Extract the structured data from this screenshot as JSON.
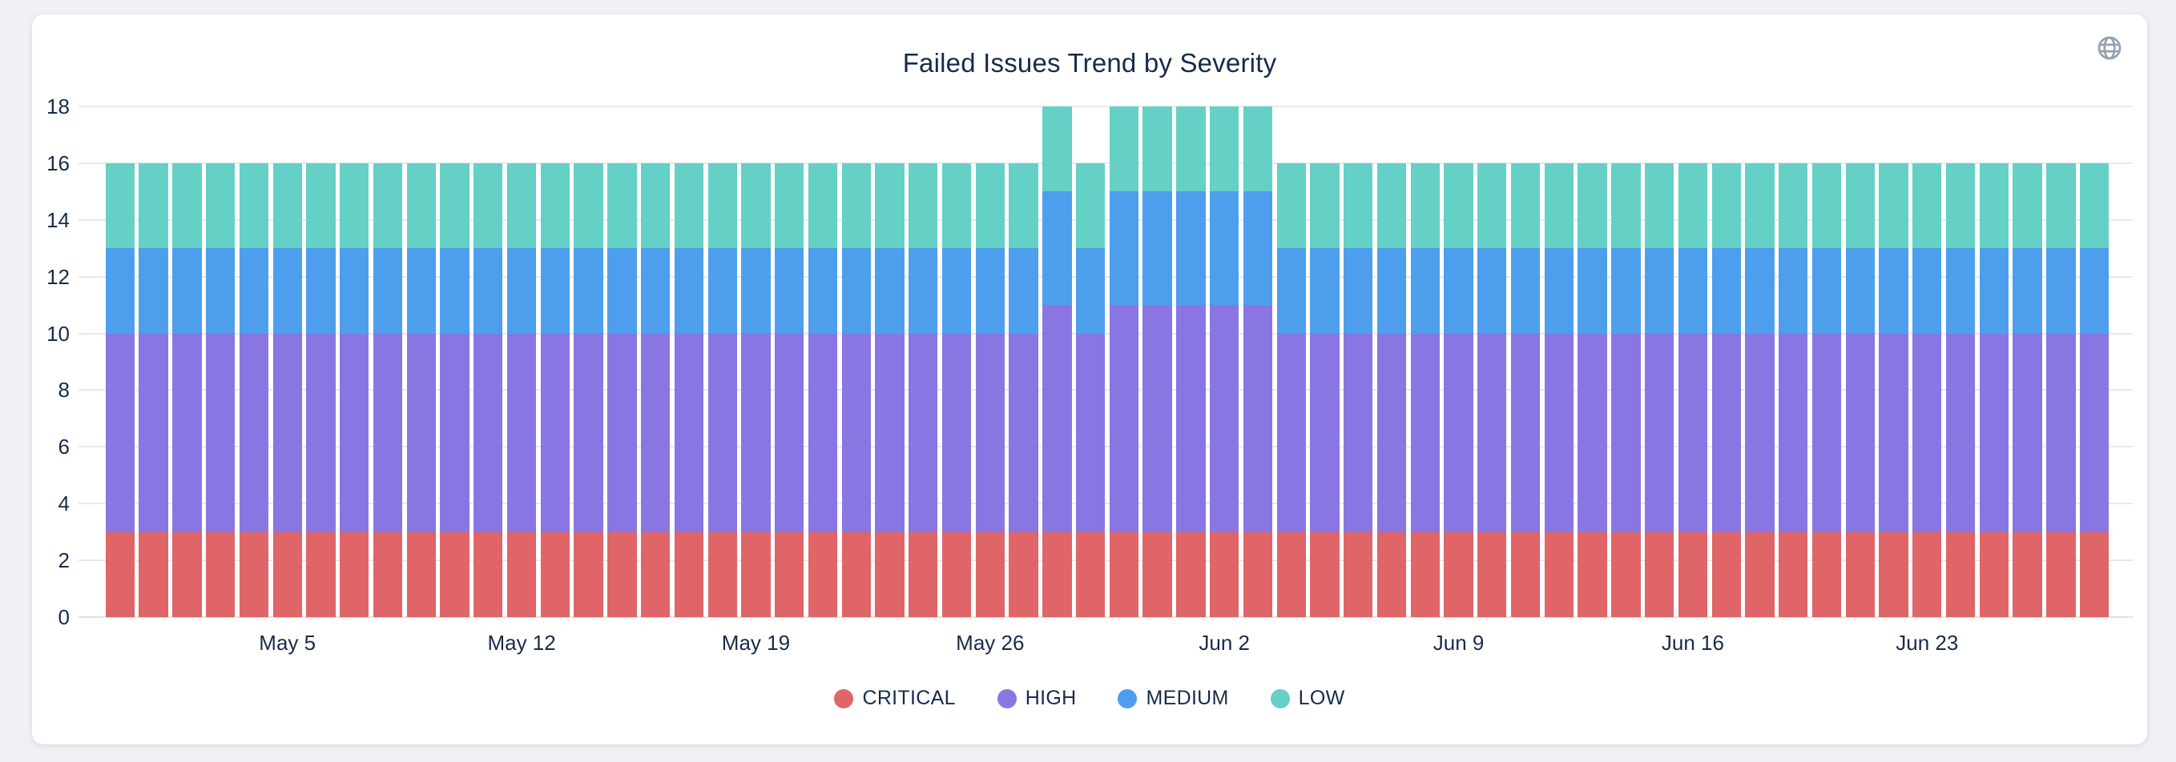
{
  "page": {
    "background": "#EFF1F4",
    "card_background": "#FFFFFF"
  },
  "chart": {
    "title": "Failed Issues Trend by Severity"
  },
  "header": {
    "icon": "globe",
    "icon_color": "#97A0AF"
  },
  "chart_data": {
    "type": "bar",
    "stacked": true,
    "title": "Failed Issues Trend by Severity",
    "grid": "horizontal",
    "legend_position": "bottom",
    "ylim": [
      0,
      18
    ],
    "y_ticks": [
      0,
      2,
      4,
      6,
      8,
      10,
      12,
      14,
      16,
      18
    ],
    "x_tick_indices": [
      5,
      12,
      19,
      26,
      33,
      40,
      47,
      54
    ],
    "x_tick_labels": [
      "May 5",
      "May 12",
      "May 19",
      "May 26",
      "Jun 2",
      "Jun 9",
      "Jun 16",
      "Jun 23"
    ],
    "categories": [
      "Apr 30",
      "May 1",
      "May 2",
      "May 3",
      "May 4",
      "May 5",
      "May 6",
      "May 7",
      "May 8",
      "May 9",
      "May 10",
      "May 11",
      "May 12",
      "May 13",
      "May 14",
      "May 15",
      "May 16",
      "May 17",
      "May 18",
      "May 19",
      "May 20",
      "May 21",
      "May 22",
      "May 23",
      "May 24",
      "May 25",
      "May 26",
      "May 27",
      "May 28",
      "May 29",
      "May 30",
      "May 31",
      "Jun 1",
      "Jun 2",
      "Jun 3",
      "Jun 4",
      "Jun 5",
      "Jun 6",
      "Jun 7",
      "Jun 8",
      "Jun 9",
      "Jun 10",
      "Jun 11",
      "Jun 12",
      "Jun 13",
      "Jun 14",
      "Jun 15",
      "Jun 16",
      "Jun 17",
      "Jun 18",
      "Jun 19",
      "Jun 20",
      "Jun 21",
      "Jun 22",
      "Jun 23",
      "Jun 24",
      "Jun 25",
      "Jun 26",
      "Jun 27",
      "Jun 28"
    ],
    "series": [
      {
        "name": "CRITICAL",
        "color": "#DF6568",
        "values": [
          3,
          3,
          3,
          3,
          3,
          3,
          3,
          3,
          3,
          3,
          3,
          3,
          3,
          3,
          3,
          3,
          3,
          3,
          3,
          3,
          3,
          3,
          3,
          3,
          3,
          3,
          3,
          3,
          3,
          3,
          3,
          3,
          3,
          3,
          3,
          3,
          3,
          3,
          3,
          3,
          3,
          3,
          3,
          3,
          3,
          3,
          3,
          3,
          3,
          3,
          3,
          3,
          3,
          3,
          3,
          3,
          3,
          3,
          3,
          3
        ]
      },
      {
        "name": "HIGH",
        "color": "#8A76E3",
        "values": [
          7,
          7,
          7,
          7,
          7,
          7,
          7,
          7,
          7,
          7,
          7,
          7,
          7,
          7,
          7,
          7,
          7,
          7,
          7,
          7,
          7,
          7,
          7,
          7,
          7,
          7,
          7,
          7,
          8,
          7,
          8,
          8,
          8,
          8,
          8,
          7,
          7,
          7,
          7,
          7,
          7,
          7,
          7,
          7,
          7,
          7,
          7,
          7,
          7,
          7,
          7,
          7,
          7,
          7,
          7,
          7,
          7,
          7,
          7,
          7
        ]
      },
      {
        "name": "MEDIUM",
        "color": "#4D9FED",
        "values": [
          3,
          3,
          3,
          3,
          3,
          3,
          3,
          3,
          3,
          3,
          3,
          3,
          3,
          3,
          3,
          3,
          3,
          3,
          3,
          3,
          3,
          3,
          3,
          3,
          3,
          3,
          3,
          3,
          4,
          3,
          4,
          4,
          4,
          4,
          4,
          3,
          3,
          3,
          3,
          3,
          3,
          3,
          3,
          3,
          3,
          3,
          3,
          3,
          3,
          3,
          3,
          3,
          3,
          3,
          3,
          3,
          3,
          3,
          3,
          3
        ]
      },
      {
        "name": "LOW",
        "color": "#65D0C5",
        "values": [
          3,
          3,
          3,
          3,
          3,
          3,
          3,
          3,
          3,
          3,
          3,
          3,
          3,
          3,
          3,
          3,
          3,
          3,
          3,
          3,
          3,
          3,
          3,
          3,
          3,
          3,
          3,
          3,
          3,
          3,
          3,
          3,
          3,
          3,
          3,
          3,
          3,
          3,
          3,
          3,
          3,
          3,
          3,
          3,
          3,
          3,
          3,
          3,
          3,
          3,
          3,
          3,
          3,
          3,
          3,
          3,
          3,
          3,
          3,
          3
        ]
      }
    ],
    "colors": {
      "text": "#172B4D",
      "grid": "#E7E9ED",
      "icon": "#97A0AF"
    }
  }
}
